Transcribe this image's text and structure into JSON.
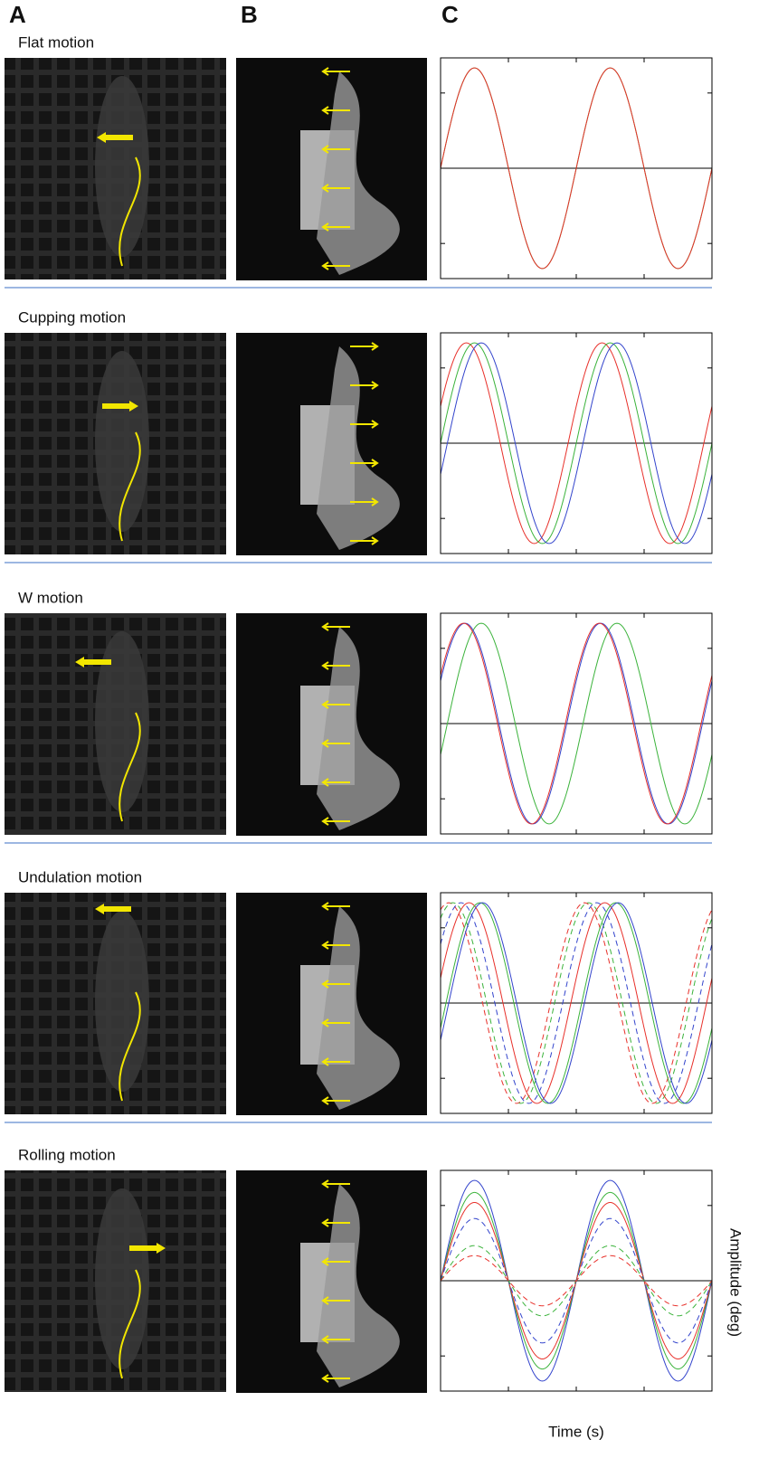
{
  "panels": {
    "a": "A",
    "b": "B",
    "c": "C"
  },
  "axis_labels": {
    "x": "Time (s)",
    "y": "Amplitude (deg)"
  },
  "chart_data": [
    {
      "type": "line",
      "title": "Flat motion",
      "xlim": [
        0,
        2
      ],
      "ylim": [
        -1.1,
        1.1
      ],
      "xticks": [
        0.5,
        1,
        1.5
      ],
      "yticks": [
        -0.75,
        0,
        0.75
      ],
      "hline": 0,
      "hline_color": "#000000",
      "series": [
        {
          "color": "#3bb33b",
          "dashed": false,
          "amplitude": 1,
          "phase": 0
        },
        {
          "color": "#e8302a",
          "dashed": false,
          "amplitude": 1,
          "phase": 0
        }
      ]
    },
    {
      "type": "line",
      "title": "Cupping motion",
      "xlim": [
        0,
        2
      ],
      "ylim": [
        -1.1,
        1.1
      ],
      "xticks": [
        0.5,
        1,
        1.5
      ],
      "yticks": [
        -0.75,
        0,
        0.75
      ],
      "hline": 0,
      "hline_color": "#000000",
      "series": [
        {
          "color": "#e8302a",
          "dashed": false,
          "amplitude": 1,
          "phase": -0.06
        },
        {
          "color": "#3bb33b",
          "dashed": false,
          "amplitude": 1,
          "phase": 0
        },
        {
          "color": "#3344cc",
          "dashed": false,
          "amplitude": 1,
          "phase": 0.05
        }
      ]
    },
    {
      "type": "line",
      "title": "W motion",
      "xlim": [
        0,
        2
      ],
      "ylim": [
        -1.1,
        1.1
      ],
      "xticks": [
        0.5,
        1,
        1.5
      ],
      "yticks": [
        -0.75,
        0,
        0.75
      ],
      "hline": 0,
      "hline_color": "#000000",
      "series": [
        {
          "color": "#3bb33b",
          "dashed": false,
          "amplitude": 1,
          "phase": 0.05
        },
        {
          "color": "#3344cc",
          "dashed": false,
          "amplitude": 1,
          "phase": -0.07
        },
        {
          "color": "#e8302a",
          "dashed": false,
          "amplitude": 1,
          "phase": -0.08
        }
      ]
    },
    {
      "type": "line",
      "title": "Undulation motion",
      "xlim": [
        0,
        2
      ],
      "ylim": [
        -1.1,
        1.1
      ],
      "xticks": [
        0.5,
        1,
        1.5
      ],
      "yticks": [
        -0.75,
        0,
        0.75
      ],
      "hline": 0,
      "hline_color": "#000000",
      "series": [
        {
          "color": "#e8302a",
          "dashed": true,
          "amplitude": 1,
          "phase": -0.19
        },
        {
          "color": "#3bb33b",
          "dashed": true,
          "amplitude": 1,
          "phase": -0.16
        },
        {
          "color": "#3344cc",
          "dashed": true,
          "amplitude": 1,
          "phase": -0.1
        },
        {
          "color": "#e8302a",
          "dashed": false,
          "amplitude": 1,
          "phase": -0.04
        },
        {
          "color": "#3bb33b",
          "dashed": false,
          "amplitude": 1,
          "phase": 0.04
        },
        {
          "color": "#3344cc",
          "dashed": false,
          "amplitude": 1,
          "phase": 0.06
        }
      ]
    },
    {
      "type": "line",
      "title": "Rolling motion",
      "xlim": [
        0,
        2
      ],
      "ylim": [
        -1.1,
        1.1
      ],
      "xticks": [
        0.5,
        1,
        1.5
      ],
      "yticks": [
        -0.75,
        0,
        0.75
      ],
      "hline": 0,
      "hline_color": "#000000",
      "series": [
        {
          "color": "#3344cc",
          "dashed": false,
          "amplitude": 1,
          "phase": 0
        },
        {
          "color": "#3bb33b",
          "dashed": false,
          "amplitude": 0.88,
          "phase": 0
        },
        {
          "color": "#e8302a",
          "dashed": false,
          "amplitude": 0.78,
          "phase": 0
        },
        {
          "color": "#3344cc",
          "dashed": true,
          "amplitude": 0.62,
          "phase": 0
        },
        {
          "color": "#3bb33b",
          "dashed": true,
          "amplitude": 0.35,
          "phase": 0
        },
        {
          "color": "#e8302a",
          "dashed": true,
          "amplitude": 0.25,
          "phase": 0
        }
      ]
    }
  ]
}
